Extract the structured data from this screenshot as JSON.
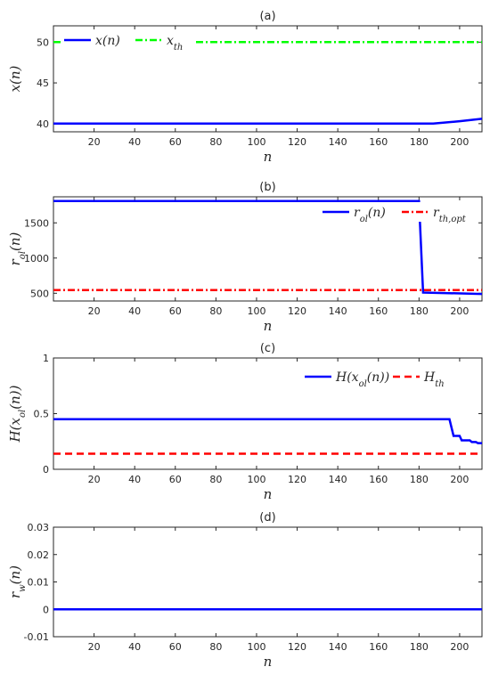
{
  "chart_data": [
    {
      "type": "line",
      "title": "(a)",
      "xlabel": "n",
      "ylabel": {
        "main": "x",
        "sub": "",
        "arg": "(n)"
      },
      "xlim": [
        0,
        211
      ],
      "ylim": [
        39,
        52
      ],
      "xticks": [
        "20",
        "40",
        "60",
        "80",
        "100",
        "120",
        "140",
        "160",
        "180",
        "200"
      ],
      "yticks": [
        "40",
        "45",
        "50"
      ],
      "legend_position": "top-left",
      "grid": false,
      "series": [
        {
          "name": {
            "main": "x",
            "sub": "",
            "arg": "(n)"
          },
          "color": "#0000ff",
          "style": "solid",
          "x": [
            0,
            60,
            120,
            187,
            200,
            211
          ],
          "y": [
            40.0,
            40.0,
            40.0,
            40.0,
            40.3,
            40.6
          ]
        },
        {
          "name": {
            "main": "x",
            "sub": "th",
            "arg": ""
          },
          "color": "#00ff00",
          "style": "dashdot",
          "x": [
            0,
            211
          ],
          "y": [
            50.0,
            50.0
          ]
        }
      ]
    },
    {
      "type": "line",
      "title": "(b)",
      "xlabel": "n",
      "ylabel": {
        "main": "r",
        "sub": "ol",
        "arg": "(n)"
      },
      "xlim": [
        0,
        211
      ],
      "ylim": [
        390,
        1870
      ],
      "xticks": [
        "20",
        "40",
        "60",
        "80",
        "100",
        "120",
        "140",
        "160",
        "180",
        "200"
      ],
      "yticks": [
        "500",
        "1000",
        "1500"
      ],
      "legend_position": "top-right",
      "grid": false,
      "series": [
        {
          "name": {
            "main": "r",
            "sub": "ol",
            "arg": "(n)"
          },
          "color": "#0000ff",
          "style": "solid",
          "x": [
            0,
            180,
            182,
            211
          ],
          "y": [
            1810,
            1810,
            510,
            490
          ]
        },
        {
          "name": {
            "main": "r",
            "sub": "th,opt",
            "arg": ""
          },
          "color": "#ff0000",
          "style": "dashdot",
          "x": [
            0,
            211
          ],
          "y": [
            545,
            545
          ]
        }
      ]
    },
    {
      "type": "line",
      "title": "(c)",
      "xlabel": "n",
      "ylabel": {
        "main": "H",
        "sub": "",
        "arg": "(x",
        "arg_sub": "ol",
        "arg_end": "(n))"
      },
      "xlim": [
        0,
        211
      ],
      "ylim": [
        0,
        1
      ],
      "xticks": [
        "20",
        "40",
        "60",
        "80",
        "100",
        "120",
        "140",
        "160",
        "180",
        "200"
      ],
      "yticks": [
        "0",
        "0.5",
        "1"
      ],
      "legend_position": "top-right",
      "grid": false,
      "series": [
        {
          "name": {
            "main": "H",
            "sub": "",
            "arg": "(x",
            "arg_sub": "ol",
            "arg_end": "(n))"
          },
          "color": "#0000ff",
          "style": "solid",
          "x": [
            0,
            195,
            197,
            200,
            201,
            205,
            206,
            208,
            209,
            211
          ],
          "y": [
            0.45,
            0.45,
            0.3,
            0.3,
            0.26,
            0.26,
            0.245,
            0.245,
            0.235,
            0.235
          ]
        },
        {
          "name": {
            "main": "H",
            "sub": "th",
            "arg": ""
          },
          "color": "#ff0000",
          "style": "dashed",
          "x": [
            0,
            211
          ],
          "y": [
            0.14,
            0.14
          ]
        }
      ]
    },
    {
      "type": "line",
      "title": "(d)",
      "xlabel": "n",
      "ylabel": {
        "main": "r",
        "sub": "w",
        "arg": "(n)"
      },
      "xlim": [
        0,
        211
      ],
      "ylim": [
        -0.01,
        0.03
      ],
      "xticks": [
        "20",
        "40",
        "60",
        "80",
        "100",
        "120",
        "140",
        "160",
        "180",
        "200"
      ],
      "yticks": [
        "-0.01",
        "0",
        "0.01",
        "0.02",
        "0.03"
      ],
      "legend_position": "none",
      "grid": false,
      "series": [
        {
          "name": "",
          "color": "#0000ff",
          "style": "solid",
          "x": [
            0,
            211
          ],
          "y": [
            0,
            0
          ]
        }
      ]
    }
  ]
}
